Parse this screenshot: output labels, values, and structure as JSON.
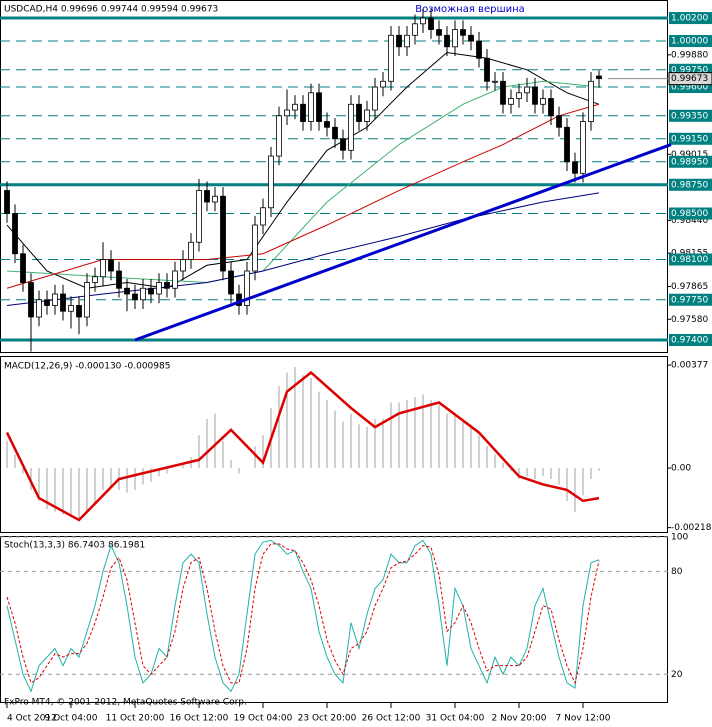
{
  "chart_data": [
    {
      "type": "candlestick",
      "title": "USDCAD,H4  0.99696 0.99744 0.99594 0.99673",
      "annotation": "Возможная вершина",
      "ylim": [
        0.97313,
        1.00357
      ],
      "yticks": [
        {
          "value": 0.9988,
          "label": "0.99880"
        },
        {
          "value": 0.99015,
          "label": "0.99015"
        },
        {
          "value": 0.9844,
          "label": "0.98440"
        },
        {
          "value": 0.98155,
          "label": "0.98155"
        },
        {
          "value": 0.97865,
          "label": "0.97865"
        },
        {
          "value": 0.9758,
          "label": "0.97580"
        }
      ],
      "levels": [
        {
          "value": 1.002,
          "label": "1.00200",
          "style": "solid"
        },
        {
          "value": 1.0,
          "label": "1.00000",
          "style": "dashed"
        },
        {
          "value": 0.9975,
          "label": "0.99750",
          "style": "dashed"
        },
        {
          "value": 0.996,
          "label": "0.99600",
          "style": "dashed"
        },
        {
          "value": 0.9935,
          "label": "0.99350",
          "style": "dashed"
        },
        {
          "value": 0.9915,
          "label": "0.99150",
          "style": "dashed"
        },
        {
          "value": 0.9895,
          "label": "0.98950",
          "style": "dashed"
        },
        {
          "value": 0.9875,
          "label": "0.98750",
          "style": "solid"
        },
        {
          "value": 0.985,
          "label": "0.98500",
          "style": "dashed"
        },
        {
          "value": 0.981,
          "label": "0.98100",
          "style": "dashed"
        },
        {
          "value": 0.9775,
          "label": "0.97750",
          "style": "dashed"
        },
        {
          "value": 0.974,
          "label": "0.97400",
          "style": "solid"
        }
      ],
      "level_color": "#008080",
      "last_price": {
        "value": 0.99673,
        "label": "0.99673"
      },
      "trendline": {
        "x": [
          16,
          83
        ],
        "values": [
          0.974,
          0.991
        ],
        "color": "#0000cc"
      },
      "ohlc": [
        [
          0.987,
          0.9878,
          0.9842,
          0.985
        ],
        [
          0.985,
          0.9858,
          0.9807,
          0.9815
        ],
        [
          0.9815,
          0.9823,
          0.9782,
          0.979
        ],
        [
          0.979,
          0.9798,
          0.973,
          0.976
        ],
        [
          0.976,
          0.9783,
          0.9752,
          0.9775
        ],
        [
          0.9775,
          0.9783,
          0.9762,
          0.977
        ],
        [
          0.977,
          0.9788,
          0.9762,
          0.978
        ],
        [
          0.978,
          0.9788,
          0.9757,
          0.9765
        ],
        [
          0.9765,
          0.9778,
          0.975,
          0.977
        ],
        [
          0.977,
          0.9778,
          0.9745,
          0.976
        ],
        [
          0.976,
          0.9798,
          0.9752,
          0.979
        ],
        [
          0.979,
          0.9803,
          0.9782,
          0.9795
        ],
        [
          0.9795,
          0.9825,
          0.9787,
          0.981
        ],
        [
          0.981,
          0.9818,
          0.9792,
          0.98
        ],
        [
          0.98,
          0.9808,
          0.9777,
          0.9785
        ],
        [
          0.9785,
          0.9793,
          0.9765,
          0.978
        ],
        [
          0.978,
          0.9788,
          0.9767,
          0.9775
        ],
        [
          0.9775,
          0.9793,
          0.9767,
          0.9785
        ],
        [
          0.9785,
          0.9793,
          0.9772,
          0.978
        ],
        [
          0.978,
          0.9798,
          0.9772,
          0.979
        ],
        [
          0.979,
          0.9798,
          0.9777,
          0.9785
        ],
        [
          0.9785,
          0.9808,
          0.9777,
          0.98
        ],
        [
          0.98,
          0.9818,
          0.9792,
          0.981
        ],
        [
          0.981,
          0.9833,
          0.9802,
          0.9825
        ],
        [
          0.9825,
          0.988,
          0.9817,
          0.987
        ],
        [
          0.987,
          0.9878,
          0.9852,
          0.986
        ],
        [
          0.986,
          0.9873,
          0.9852,
          0.9865
        ],
        [
          0.9865,
          0.9873,
          0.9792,
          0.98
        ],
        [
          0.98,
          0.9808,
          0.9772,
          0.978
        ],
        [
          0.978,
          0.9788,
          0.9762,
          0.977
        ],
        [
          0.977,
          0.9808,
          0.9762,
          0.98
        ],
        [
          0.98,
          0.9848,
          0.9792,
          0.984
        ],
        [
          0.984,
          0.9863,
          0.9832,
          0.9855
        ],
        [
          0.9855,
          0.9908,
          0.9847,
          0.99
        ],
        [
          0.99,
          0.9943,
          0.9892,
          0.9935
        ],
        [
          0.9935,
          0.9958,
          0.9927,
          0.994
        ],
        [
          0.994,
          0.9953,
          0.9932,
          0.9945
        ],
        [
          0.9945,
          0.9953,
          0.9922,
          0.993
        ],
        [
          0.993,
          0.9963,
          0.9922,
          0.9955
        ],
        [
          0.9955,
          0.9963,
          0.9922,
          0.993
        ],
        [
          0.993,
          0.9938,
          0.9917,
          0.9925
        ],
        [
          0.9925,
          0.9933,
          0.9907,
          0.9915
        ],
        [
          0.9915,
          0.9923,
          0.9897,
          0.9905
        ],
        [
          0.9905,
          0.9953,
          0.9897,
          0.9945
        ],
        [
          0.9945,
          0.9953,
          0.9922,
          0.993
        ],
        [
          0.993,
          0.9948,
          0.9922,
          0.994
        ],
        [
          0.994,
          0.9968,
          0.9932,
          0.996
        ],
        [
          0.996,
          0.9973,
          0.9952,
          0.9965
        ],
        [
          0.9965,
          1.0013,
          0.9957,
          1.0005
        ],
        [
          1.0005,
          1.0013,
          0.9987,
          0.9995
        ],
        [
          0.9995,
          1.0013,
          0.9987,
          1.0005
        ],
        [
          1.0005,
          1.0023,
          0.9997,
          1.0015
        ],
        [
          1.0015,
          1.0028,
          1.0007,
          1.002
        ],
        [
          1.002,
          1.0028,
          1.0002,
          1.001
        ],
        [
          1.001,
          1.0018,
          0.9997,
          1.0005
        ],
        [
          1.0005,
          1.0013,
          0.9987,
          0.9995
        ],
        [
          0.9995,
          1.0018,
          0.9987,
          1.001
        ],
        [
          1.001,
          1.0018,
          0.9997,
          1.0005
        ],
        [
          1.0005,
          1.0013,
          0.9992,
          1.0
        ],
        [
          1.0,
          1.0008,
          0.9977,
          0.9985
        ],
        [
          0.9985,
          0.9993,
          0.9957,
          0.9965
        ],
        [
          0.9965,
          0.9973,
          0.9957,
          0.9965
        ],
        [
          0.9965,
          0.9973,
          0.9937,
          0.9945
        ],
        [
          0.9945,
          0.9958,
          0.9937,
          0.995
        ],
        [
          0.995,
          0.9963,
          0.9942,
          0.9955
        ],
        [
          0.9955,
          0.9968,
          0.9947,
          0.996
        ],
        [
          0.996,
          0.9968,
          0.9937,
          0.9945
        ],
        [
          0.9945,
          0.9958,
          0.9937,
          0.995
        ],
        [
          0.995,
          0.9958,
          0.9927,
          0.9935
        ],
        [
          0.9935,
          0.9943,
          0.9917,
          0.9925
        ],
        [
          0.9925,
          0.9933,
          0.9887,
          0.9895
        ],
        [
          0.9895,
          0.9903,
          0.9877,
          0.9885
        ],
        [
          0.9885,
          0.9938,
          0.9877,
          0.993
        ],
        [
          0.993,
          0.9973,
          0.9922,
          0.9965
        ],
        [
          0.99696,
          0.99744,
          0.99594,
          0.99673
        ]
      ],
      "series": [
        {
          "color": "#000000",
          "x": [
            0,
            5,
            10,
            15,
            20,
            25,
            30,
            35,
            40,
            45,
            50,
            55,
            60,
            65,
            70,
            74
          ],
          "values": [
            0.984,
            0.98,
            0.9785,
            0.979,
            0.9785,
            0.9805,
            0.981,
            0.986,
            0.9905,
            0.9925,
            0.996,
            0.999,
            0.9985,
            0.9975,
            0.9955,
            0.9945
          ]
        },
        {
          "color": "#3cb371",
          "x": [
            0,
            12,
            25,
            32,
            40,
            49,
            57,
            62,
            67,
            74
          ],
          "values": [
            0.98,
            0.9795,
            0.979,
            0.98,
            0.986,
            0.991,
            0.9945,
            0.996,
            0.9965,
            0.996
          ]
        },
        {
          "color": "#cc0000",
          "x": [
            0,
            12,
            25,
            32,
            40,
            49,
            57,
            62,
            69,
            74
          ],
          "values": [
            0.9785,
            0.981,
            0.981,
            0.9815,
            0.984,
            0.987,
            0.9895,
            0.991,
            0.9935,
            0.9945
          ]
        },
        {
          "color": "#000080",
          "x": [
            0,
            12,
            25,
            32,
            40,
            49,
            57,
            67,
            74
          ],
          "values": [
            0.977,
            0.978,
            0.979,
            0.98,
            0.9815,
            0.983,
            0.9845,
            0.986,
            0.9868
          ]
        }
      ]
    },
    {
      "type": "macd",
      "title": "MACD(12,26,9) -0.000130 -0.000985",
      "ylim": [
        -0.00234,
        0.00403
      ],
      "yticks": [
        {
          "value": 0.00377,
          "label": "0.00377"
        },
        {
          "value": 0,
          "label": "0.00"
        },
        {
          "value": -0.00218,
          "label": "-0.00218"
        }
      ],
      "histogram": {
        "color": "#a0a0a0",
        "values": [
          0.001,
          0.0005,
          -0.0002,
          -0.0008,
          -0.0012,
          -0.0015,
          -0.0016,
          -0.0017,
          -0.0018,
          -0.0019,
          -0.0016,
          -0.0013,
          -0.0008,
          -0.0007,
          -0.0008,
          -0.0009,
          -0.0008,
          -0.0006,
          -0.0005,
          -0.0003,
          -0.0002,
          0.0,
          0.0002,
          0.0004,
          0.0012,
          0.0018,
          0.002,
          0.001,
          0.0003,
          -0.0002,
          0.0,
          0.0008,
          0.0012,
          0.0022,
          0.003,
          0.0035,
          0.0037,
          0.0034,
          0.0033,
          0.0028,
          0.0025,
          0.0021,
          0.0017,
          0.002,
          0.0016,
          0.0015,
          0.0018,
          0.0018,
          0.0024,
          0.0024,
          0.0025,
          0.0026,
          0.0027,
          0.0025,
          0.0023,
          0.002,
          0.002,
          0.0018,
          0.0016,
          0.0012,
          0.0008,
          0.0005,
          0.0002,
          -0.0001,
          -0.0004,
          -0.0003,
          -0.0004,
          -0.0003,
          -0.0004,
          -0.0006,
          -0.0012,
          -0.0016,
          -0.001,
          -0.0004,
          -0.0001
        ]
      },
      "signal": {
        "color": "#dd0000",
        "x": [
          0,
          4,
          9,
          14,
          24,
          28,
          32,
          35,
          38,
          43,
          46,
          49,
          54,
          59,
          64,
          67,
          70,
          72,
          74
        ],
        "values": [
          0.0013,
          -0.0011,
          -0.0019,
          -0.0004,
          0.0003,
          0.0014,
          0.0002,
          0.0028,
          0.0035,
          0.0022,
          0.0015,
          0.002,
          0.0024,
          0.0013,
          -0.0003,
          -0.0006,
          -0.0008,
          -0.0012,
          -0.0011
        ]
      }
    },
    {
      "type": "stochastic",
      "title": "Stoch(13,3,3) 86.7403 86.1981",
      "footer": "FxPro MT4, © 2001-2012, MetaQuotes Software Corp.",
      "ylim": [
        5,
        100
      ],
      "yticks": [
        100,
        80,
        20
      ],
      "main": {
        "color": "#20b2aa",
        "values": [
          60,
          40,
          20,
          10,
          25,
          30,
          35,
          25,
          35,
          30,
          45,
          60,
          80,
          95,
          85,
          60,
          30,
          15,
          20,
          35,
          30,
          60,
          85,
          90,
          85,
          55,
          30,
          15,
          10,
          20,
          55,
          90,
          97,
          98,
          95,
          90,
          92,
          80,
          70,
          45,
          30,
          20,
          15,
          50,
          35,
          55,
          70,
          75,
          90,
          85,
          85,
          95,
          98,
          90,
          60,
          25,
          70,
          60,
          35,
          25,
          15,
          30,
          20,
          30,
          25,
          35,
          60,
          70,
          50,
          30,
          15,
          12,
          60,
          85,
          86.7403
        ]
      },
      "signal": {
        "color": "#dd0000",
        "values": [
          65,
          50,
          30,
          15,
          18,
          25,
          32,
          30,
          32,
          32,
          38,
          50,
          65,
          82,
          88,
          75,
          50,
          25,
          20,
          25,
          30,
          45,
          70,
          85,
          88,
          70,
          45,
          25,
          15,
          15,
          35,
          70,
          90,
          96,
          96,
          93,
          92,
          85,
          75,
          60,
          40,
          28,
          20,
          35,
          38,
          45,
          60,
          70,
          82,
          85,
          86,
          90,
          95,
          94,
          78,
          45,
          50,
          60,
          50,
          35,
          22,
          25,
          25,
          25,
          25,
          30,
          45,
          60,
          58,
          40,
          25,
          15,
          35,
          65,
          86.1981
        ]
      },
      "xticks": [
        {
          "value": 0,
          "label": "4 Oct 2012"
        },
        {
          "value": 8,
          "label": "9 Oct 04:00"
        },
        {
          "value": 16,
          "label": "11 Oct 20:00"
        },
        {
          "value": 24,
          "label": "16 Oct 12:00"
        },
        {
          "value": 32,
          "label": "19 Oct 04:00"
        },
        {
          "value": 40,
          "label": "23 Oct 20:00"
        },
        {
          "value": 48,
          "label": "26 Oct 12:00"
        },
        {
          "value": 56,
          "label": "31 Oct 04:00"
        },
        {
          "value": 64,
          "label": "2 Nov 20:00"
        },
        {
          "value": 72,
          "label": "7 Nov 12:00"
        }
      ]
    }
  ]
}
